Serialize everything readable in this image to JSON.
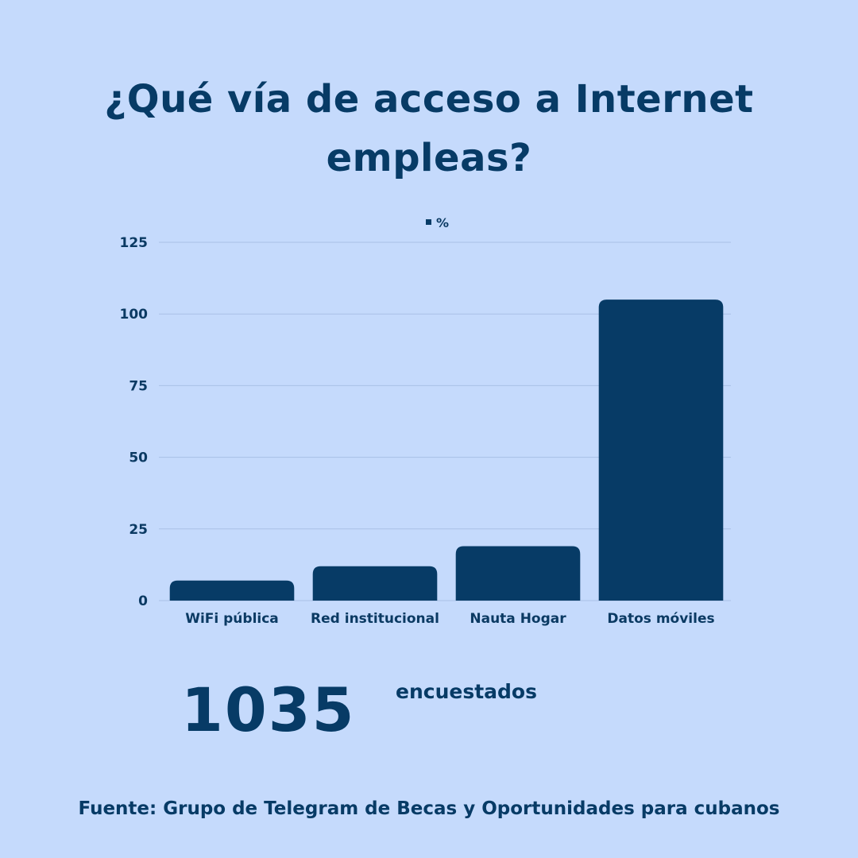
{
  "title": "¿Qué vía de acceso a Internet empleas?",
  "summary": {
    "count": "1035",
    "label": "encuestados"
  },
  "source": "Fuente: Grupo de Telegram de Becas y Oportunidades para cubanos",
  "colors": {
    "background": "#c5dafc",
    "bar": "#073b66",
    "grid": "#a9c0e6",
    "text": "#073b66"
  },
  "chart_data": {
    "type": "bar",
    "categories": [
      "WiFi pública",
      "Red institucional",
      "Nauta Hogar",
      "Datos móviles"
    ],
    "series": [
      {
        "name": "%",
        "values": [
          7,
          12,
          19,
          105
        ]
      }
    ],
    "title": "",
    "xlabel": "",
    "ylabel": "",
    "ylim": [
      0,
      125
    ],
    "yticks": [
      0,
      25,
      50,
      75,
      100,
      125
    ],
    "grid": true,
    "legend": "top-center"
  }
}
